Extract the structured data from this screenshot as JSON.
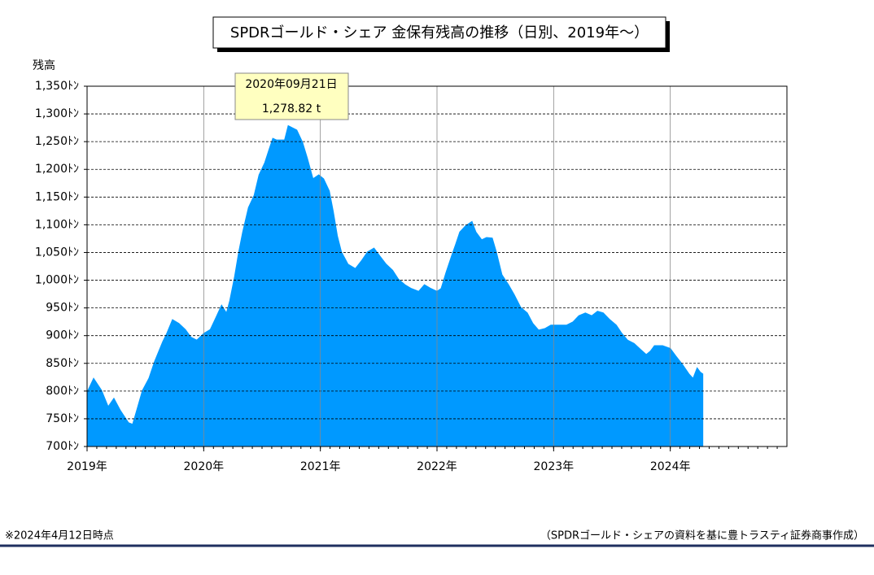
{
  "chart_data": {
    "type": "area",
    "title": "SPDRゴールド・シェア 金保有残高の推移（日別、2019年～）",
    "ylabel": "残高",
    "color": "#0099ff",
    "grid": true,
    "xlim": [
      2019,
      2025
    ],
    "xticks": [
      {
        "value": 2019,
        "label": "2019年"
      },
      {
        "value": 2020,
        "label": "2020年"
      },
      {
        "value": 2021,
        "label": "2021年"
      },
      {
        "value": 2022,
        "label": "2022年"
      },
      {
        "value": 2023,
        "label": "2023年"
      },
      {
        "value": 2024,
        "label": "2024年"
      }
    ],
    "ylim": [
      700,
      1350
    ],
    "yticks": [
      {
        "value": 700,
        "label": "700ﾄﾝ"
      },
      {
        "value": 750,
        "label": "750ﾄﾝ"
      },
      {
        "value": 800,
        "label": "800ﾄﾝ"
      },
      {
        "value": 850,
        "label": "850ﾄﾝ"
      },
      {
        "value": 900,
        "label": "900ﾄﾝ"
      },
      {
        "value": 950,
        "label": "950ﾄﾝ"
      },
      {
        "value": 1000,
        "label": "1,000ﾄﾝ"
      },
      {
        "value": 1050,
        "label": "1,050ﾄﾝ"
      },
      {
        "value": 1100,
        "label": "1,100ﾄﾝ"
      },
      {
        "value": 1150,
        "label": "1,150ﾄﾝ"
      },
      {
        "value": 1200,
        "label": "1,200ﾄﾝ"
      },
      {
        "value": 1250,
        "label": "1,250ﾄﾝ"
      },
      {
        "value": 1300,
        "label": "1,300ﾄﾝ"
      },
      {
        "value": 1350,
        "label": "1,350ﾄﾝ"
      }
    ],
    "x": [
      2019.0,
      2019.056,
      2019.125,
      2019.181,
      2019.23,
      2019.286,
      2019.355,
      2019.39,
      2019.425,
      2019.474,
      2019.53,
      2019.578,
      2019.648,
      2019.683,
      2019.732,
      2019.787,
      2019.843,
      2019.892,
      2019.941,
      2020.0,
      2020.056,
      2020.105,
      2020.153,
      2020.195,
      2020.223,
      2020.265,
      2020.3,
      2020.334,
      2020.383,
      2020.432,
      2020.474,
      2020.523,
      2020.557,
      2020.592,
      2020.624,
      2020.693,
      2020.724,
      2020.798,
      2020.847,
      2020.889,
      2020.937,
      2020.986,
      2021.028,
      2021.077,
      2021.111,
      2021.146,
      2021.181,
      2021.237,
      2021.3,
      2021.355,
      2021.404,
      2021.46,
      2021.509,
      2021.564,
      2021.62,
      2021.669,
      2021.725,
      2021.78,
      2021.843,
      2021.892,
      2021.948,
      2022.0,
      2022.035,
      2022.077,
      2022.125,
      2022.16,
      2022.195,
      2022.244,
      2022.3,
      2022.334,
      2022.383,
      2022.425,
      2022.474,
      2022.509,
      2022.557,
      2022.613,
      2022.662,
      2022.718,
      2022.774,
      2022.822,
      2022.871,
      2022.927,
      2022.976,
      2023.049,
      2023.111,
      2023.167,
      2023.216,
      2023.272,
      2023.327,
      2023.376,
      2023.425,
      2023.481,
      2023.537,
      2023.585,
      2023.634,
      2023.69,
      2023.746,
      2023.794,
      2023.829,
      2023.864,
      2023.934,
      2024.0,
      2024.049,
      2024.105,
      2024.16,
      2024.195,
      2024.23,
      2024.258,
      2024.279
    ],
    "series": [
      {
        "name": "金保有残高",
        "values": [
          798,
          823,
          801,
          772,
          787,
          765,
          743,
          740,
          765,
          801,
          823,
          853,
          889,
          904,
          929,
          922,
          911,
          897,
          892,
          904,
          911,
          933,
          955,
          941,
          963,
          1007,
          1051,
          1087,
          1131,
          1153,
          1190,
          1212,
          1234,
          1256,
          1253,
          1253,
          1278.82,
          1271,
          1249,
          1220,
          1183,
          1190,
          1183,
          1161,
          1124,
          1080,
          1051,
          1029,
          1021,
          1036,
          1051,
          1058,
          1044,
          1029,
          1018,
          1002,
          992,
          985,
          980,
          992,
          985,
          980,
          985,
          1014,
          1044,
          1065,
          1087,
          1098,
          1106,
          1087,
          1073,
          1077,
          1076,
          1051,
          1010,
          992,
          974,
          951,
          941,
          922,
          910,
          913,
          919,
          919,
          919,
          925,
          936,
          941,
          936,
          944,
          941,
          929,
          919,
          904,
          892,
          886,
          875,
          866,
          872,
          882,
          882,
          877,
          863,
          848,
          831,
          823,
          842,
          834,
          831
        ]
      }
    ],
    "annotation": {
      "date": "2020年09月21日",
      "text": "1,278.82 t"
    },
    "note": "※2024年4月12日時点",
    "source": "（SPDRゴールド・シェアの資料を基に豊トラスティ証券商事作成）"
  }
}
